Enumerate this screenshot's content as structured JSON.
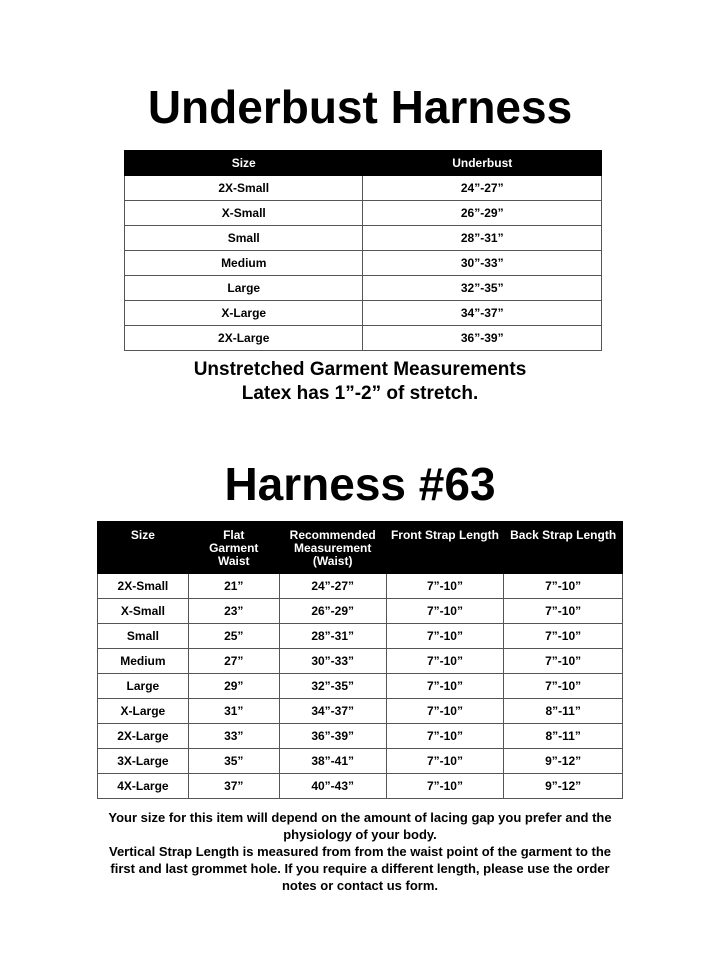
{
  "underbust": {
    "title": "Underbust Harness",
    "headers": [
      "Size",
      "Underbust"
    ],
    "rows": [
      [
        "2X-Small",
        "24”-27”"
      ],
      [
        "X-Small",
        "26”-29”"
      ],
      [
        "Small",
        "28”-31”"
      ],
      [
        "Medium",
        "30”-33”"
      ],
      [
        "Large",
        "32”-35”"
      ],
      [
        "X-Large",
        "34”-37”"
      ],
      [
        "2X-Large",
        "36”-39”"
      ]
    ],
    "note_line1": "Unstretched Garment Measurements",
    "note_line2": "Latex has 1”-2” of stretch."
  },
  "harness63": {
    "title": "Harness #63",
    "headers": [
      "Size",
      "Flat Garment Waist",
      "Recommended Measurement (Waist)",
      "Front Strap Length",
      "Back Strap Length"
    ],
    "rows": [
      [
        "2X-Small",
        "21”",
        "24”-27”",
        "7”-10”",
        "7”-10”"
      ],
      [
        "X-Small",
        "23”",
        "26”-29”",
        "7”-10”",
        "7”-10”"
      ],
      [
        "Small",
        "25”",
        "28”-31”",
        "7”-10”",
        "7”-10”"
      ],
      [
        "Medium",
        "27”",
        "30”-33”",
        "7”-10”",
        "7”-10”"
      ],
      [
        "Large",
        "29”",
        "32”-35”",
        "7”-10”",
        "7”-10”"
      ],
      [
        "X-Large",
        "31”",
        "34”-37”",
        "7”-10”",
        "8”-11”"
      ],
      [
        "2X-Large",
        "33”",
        "36”-39”",
        "7”-10”",
        "8”-11”"
      ],
      [
        "3X-Large",
        "35”",
        "38”-41”",
        "7”-10”",
        "9”-12”"
      ],
      [
        "4X-Large",
        "37”",
        "40”-43”",
        "7”-10”",
        "9”-12”"
      ]
    ],
    "footer_p1": "Your size for this item will depend on the amount of lacing gap you prefer and the physiology of your body.",
    "footer_p2": "Vertical Strap Length is measured from from the waist point of the garment to the first and last grommet hole. If you require a different length, please use the order notes or contact us form."
  }
}
